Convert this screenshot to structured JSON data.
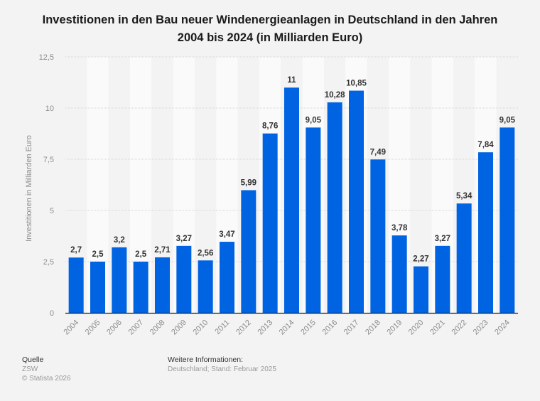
{
  "title": {
    "line1": "Investitionen in den Bau neuer Windenergieanlagen in Deutschland in den Jahren",
    "line2": "2004 bis 2024 (in Milliarden Euro)"
  },
  "footer": {
    "source_heading": "Quelle",
    "source": "ZSW",
    "copyright": "© Statista 2026",
    "info_heading": "Weitere Informationen:",
    "info": "Deutschland; Stand: Februar 2025"
  },
  "colors": {
    "bar": "#0063e1",
    "band_light": "#fafafa",
    "band_dark": "#f3f3f3",
    "grid": "#d4d4d4",
    "axis": "#1a1a1a"
  },
  "chart_data": {
    "type": "bar",
    "title": "Investitionen in den Bau neuer Windenergieanlagen in Deutschland in den Jahren 2004 bis 2024 (in Milliarden Euro)",
    "xlabel": "",
    "ylabel": "Investitionen in Milliarden Euro",
    "ylim": [
      0,
      12.5
    ],
    "yticks": [
      0,
      2.5,
      5,
      7.5,
      10,
      12.5
    ],
    "ytick_labels": [
      "0",
      "2,5",
      "5",
      "7,5",
      "10",
      "12,5"
    ],
    "grid": true,
    "categories": [
      "2004",
      "2005",
      "2006",
      "2007",
      "2008",
      "2009",
      "2010",
      "2011",
      "2012",
      "2013",
      "2014",
      "2015",
      "2016",
      "2017",
      "2018",
      "2019",
      "2020",
      "2021",
      "2022",
      "2023",
      "2024"
    ],
    "values": [
      2.7,
      2.5,
      3.2,
      2.5,
      2.71,
      3.27,
      2.56,
      3.47,
      5.99,
      8.76,
      11,
      9.05,
      10.28,
      10.85,
      7.49,
      3.78,
      2.27,
      3.27,
      5.34,
      7.84,
      9.05
    ],
    "value_labels": [
      "2,7",
      "2,5",
      "3,2",
      "2,5",
      "2,71",
      "3,27",
      "2,56",
      "3,47",
      "5,99",
      "8,76",
      "11",
      "9,05",
      "10,28",
      "10,85",
      "7,49",
      "3,78",
      "2,27",
      "3,27",
      "5,34",
      "7,84",
      "9,05"
    ]
  }
}
